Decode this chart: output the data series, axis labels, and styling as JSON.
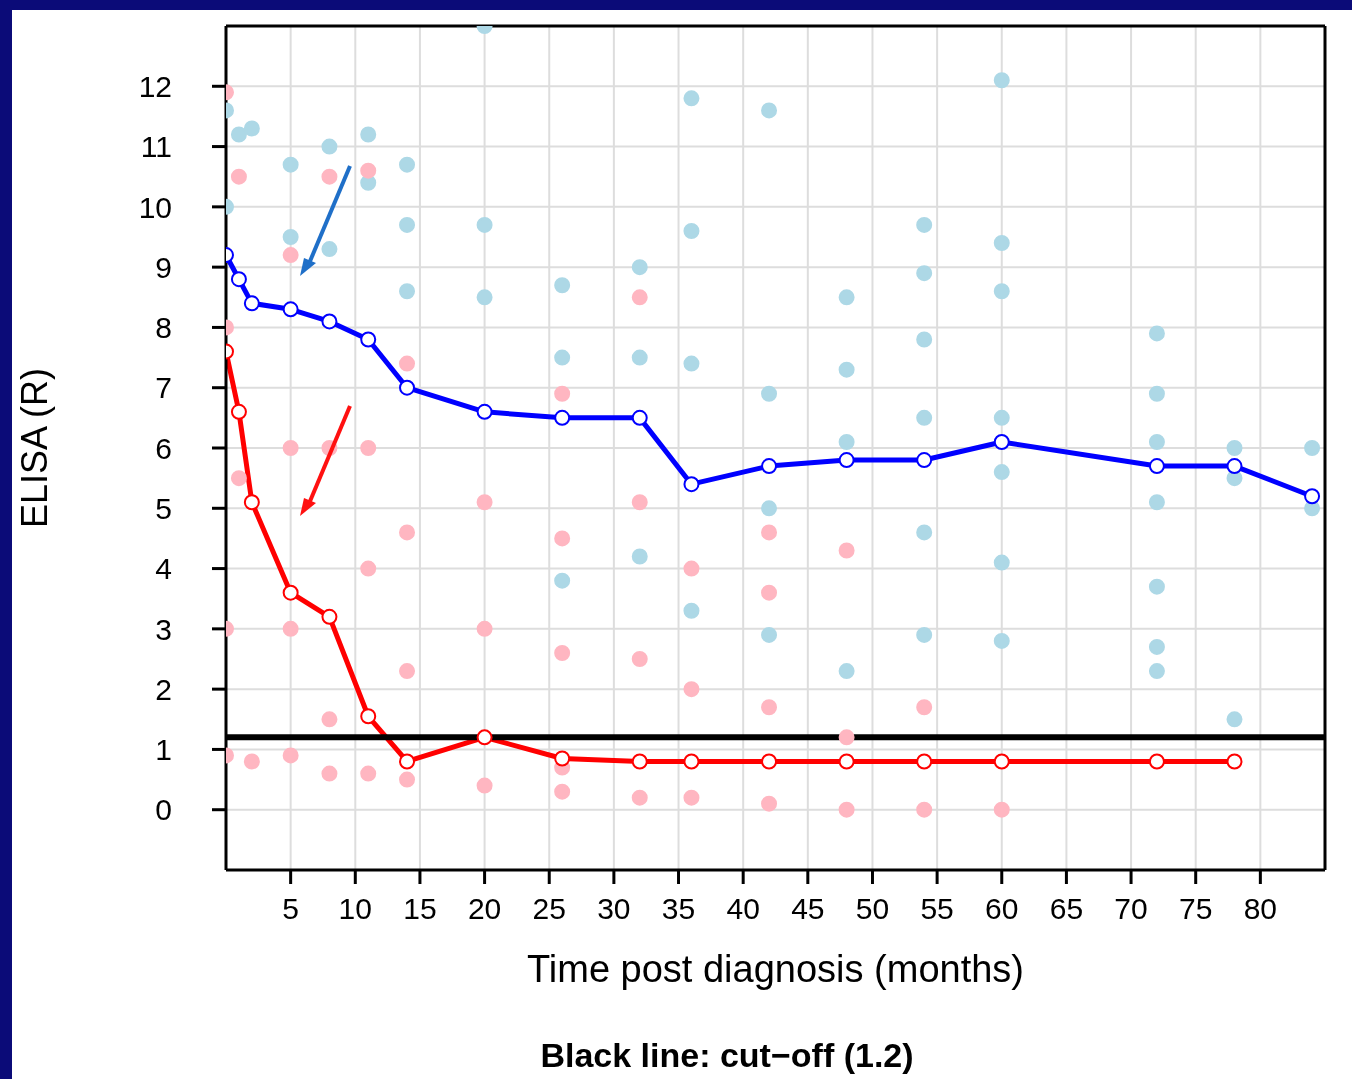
{
  "chart_data": {
    "type": "line",
    "xlabel": "Time post diagnosis (months)",
    "ylabel": "ELISA (R)",
    "xlim": [
      0,
      85
    ],
    "ylim": [
      -1,
      13
    ],
    "xticks": [
      5,
      10,
      15,
      20,
      25,
      30,
      35,
      40,
      45,
      50,
      55,
      60,
      65,
      70,
      75,
      80
    ],
    "yticks": [
      0,
      1,
      2,
      3,
      4,
      5,
      6,
      7,
      8,
      9,
      10,
      11,
      12
    ],
    "grid": true,
    "marker": "circle",
    "ref_lines": [
      {
        "axis": "y",
        "value": 1.2,
        "color": "#000000"
      }
    ],
    "annotations": [
      "Black line: cut−off (1.2)"
    ],
    "series": [
      {
        "type": "scatter",
        "color": "#add8e6",
        "x": [
          0,
          0,
          1,
          2,
          5,
          5,
          8,
          8,
          11,
          11,
          14,
          14,
          14,
          20,
          20,
          20,
          26,
          26,
          26,
          32,
          32,
          32,
          36,
          36,
          36,
          36,
          42,
          42,
          42,
          42,
          48,
          48,
          48,
          48,
          54,
          54,
          54,
          54,
          54,
          54,
          60,
          60,
          60,
          60,
          60,
          60,
          60,
          72,
          72,
          72,
          72,
          72,
          72,
          72,
          78,
          78,
          78,
          84,
          84
        ],
        "values": [
          11.6,
          10,
          11.2,
          11.3,
          10.7,
          9.5,
          11,
          9.3,
          11.2,
          10.4,
          10.7,
          9.7,
          8.6,
          13,
          9.7,
          8.5,
          8.7,
          7.5,
          3.8,
          9,
          7.5,
          4.2,
          11.8,
          9.6,
          7.4,
          3.3,
          11.6,
          6.9,
          5,
          2.9,
          8.5,
          7.3,
          6.1,
          2.3,
          9.7,
          8.9,
          7.8,
          6.5,
          4.6,
          2.9,
          12.1,
          9.4,
          8.6,
          6.5,
          5.6,
          4.1,
          2.8,
          7.9,
          6.9,
          6.1,
          5.1,
          3.7,
          2.7,
          2.3,
          6,
          5.5,
          1.5,
          6,
          5
        ]
      },
      {
        "type": "scatter",
        "color": "#ffb6c1",
        "x": [
          0,
          0,
          0,
          0,
          1,
          1,
          2,
          5,
          5,
          5,
          5,
          8,
          8,
          8,
          8,
          11,
          11,
          11,
          11,
          14,
          14,
          14,
          14,
          20,
          20,
          20,
          26,
          26,
          26,
          26,
          26,
          32,
          32,
          32,
          32,
          36,
          36,
          36,
          42,
          42,
          42,
          42,
          48,
          48,
          48,
          54,
          54,
          60
        ],
        "values": [
          11.9,
          8,
          3,
          0.9,
          10.5,
          5.5,
          0.8,
          9.2,
          6,
          3,
          0.9,
          10.5,
          6,
          1.5,
          0.6,
          10.6,
          6,
          4,
          0.6,
          7.4,
          4.6,
          2.3,
          0.5,
          5.1,
          3,
          0.4,
          6.9,
          4.5,
          2.6,
          0.7,
          0.3,
          8.5,
          5.1,
          2.5,
          0.2,
          4,
          2,
          0.2,
          4.6,
          3.6,
          1.7,
          0.1,
          4.3,
          1.2,
          0,
          1.7,
          0,
          0
        ]
      },
      {
        "color": "#0000ff",
        "x": [
          0,
          1,
          2,
          5,
          8,
          11,
          14,
          20,
          26,
          32,
          36,
          42,
          48,
          54,
          60,
          72,
          78,
          84
        ],
        "values": [
          9.2,
          8.8,
          8.4,
          8.3,
          8.1,
          7.8,
          7.0,
          6.6,
          6.5,
          6.5,
          5.4,
          5.7,
          5.8,
          5.8,
          6.1,
          5.7,
          5.7,
          5.2
        ]
      },
      {
        "color": "#ff0000",
        "x": [
          0,
          1,
          2,
          5,
          8,
          11,
          14,
          20,
          26,
          32,
          36,
          42,
          48,
          54,
          60,
          72,
          78
        ],
        "values": [
          7.6,
          6.6,
          5.1,
          3.6,
          3.2,
          1.55,
          0.8,
          1.2,
          0.85,
          0.8,
          0.8,
          0.8,
          0.8,
          0.8,
          0.8,
          0.8,
          0.8
        ]
      }
    ]
  }
}
